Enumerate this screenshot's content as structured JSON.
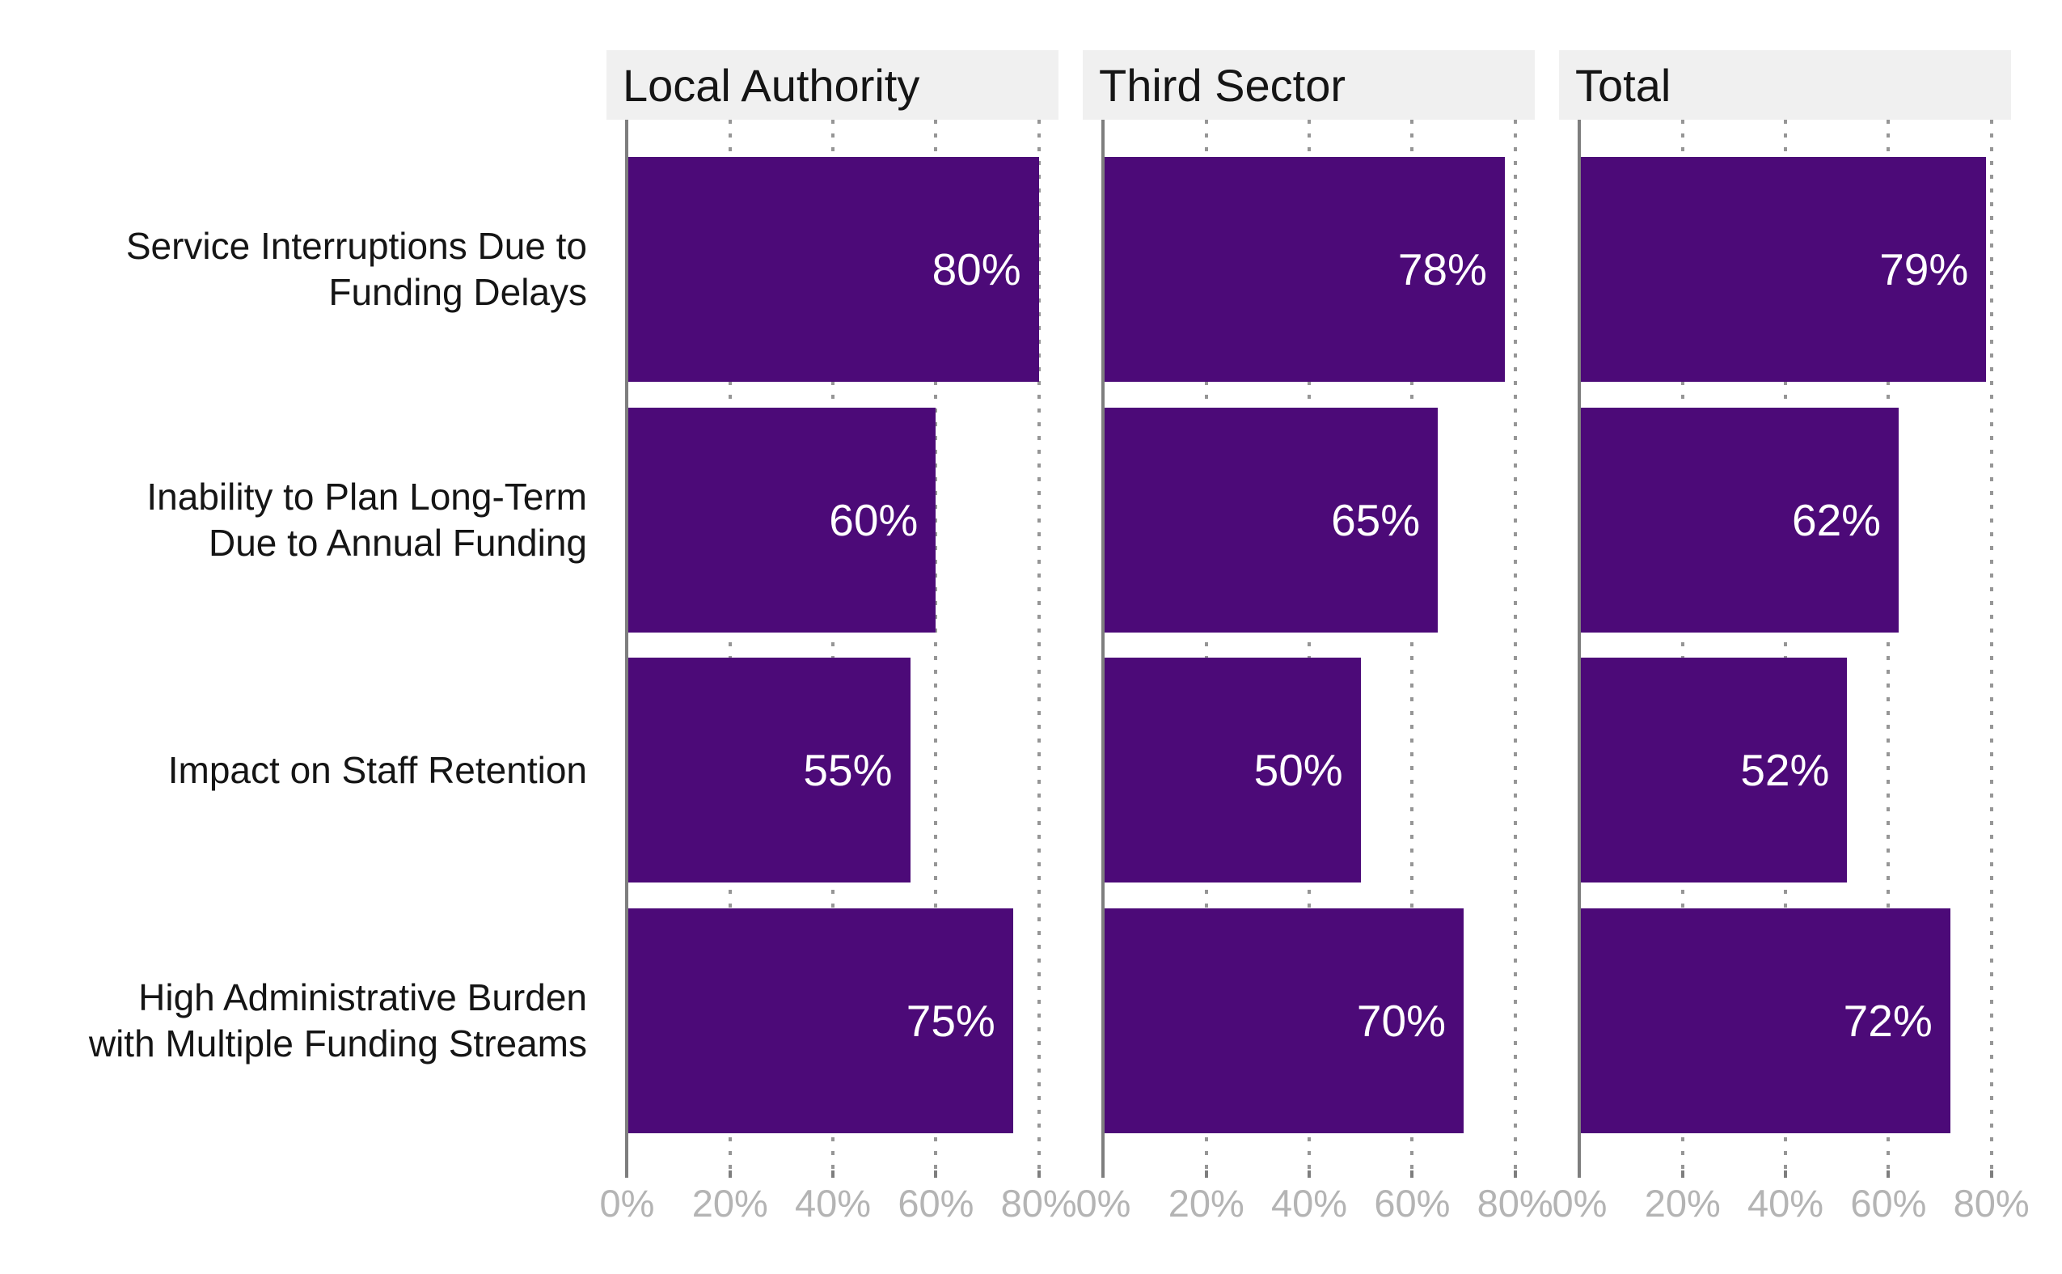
{
  "chart_data": {
    "type": "bar",
    "orientation": "horizontal",
    "title": "",
    "xlabel": "",
    "ylabel": "",
    "legend": "none",
    "grid": "vertical dotted major gridlines",
    "facets": [
      "Local Authority",
      "Third Sector",
      "Total"
    ],
    "categories": [
      "Service Interruptions Due to Funding Delays",
      "Inability to Plan Long-Term Due to Annual Funding",
      "Impact on Staff Retention",
      "High Administrative Burden with Multiple Funding Streams"
    ],
    "categories_display": [
      [
        "Service Interruptions Due to",
        "Funding Delays"
      ],
      [
        "Inability to Plan Long-Term",
        "Due to Annual Funding"
      ],
      [
        "Impact on Staff Retention"
      ],
      [
        "High Administrative Burden",
        "with Multiple Funding Streams"
      ]
    ],
    "series": [
      {
        "name": "Local Authority",
        "values": [
          80,
          60,
          55,
          75
        ],
        "labels": [
          "80%",
          "60%",
          "55%",
          "75%"
        ]
      },
      {
        "name": "Third Sector",
        "values": [
          78,
          65,
          50,
          70
        ],
        "labels": [
          "78%",
          "65%",
          "50%",
          "70%"
        ]
      },
      {
        "name": "Total",
        "values": [
          79,
          62,
          52,
          72
        ],
        "labels": [
          "79%",
          "62%",
          "52%",
          "72%"
        ]
      }
    ],
    "axis": {
      "min": 0,
      "max": 80,
      "ticks": [
        0,
        20,
        40,
        60,
        80
      ],
      "tick_labels": [
        "0%",
        "20%",
        "40%",
        "60%",
        "80%"
      ],
      "xlim_display": [
        -4,
        84
      ]
    },
    "colors": {
      "bar": "#4C0A78",
      "value_label": "#FFFFFF",
      "strip_background": "#F0F0F0",
      "strip_text": "#151515",
      "category_text": "#151515",
      "axis_line": "#7E7E7E",
      "gridline": "#969696",
      "tick_label_text": "#B4B4B4",
      "background": "#FFFFFF"
    }
  }
}
